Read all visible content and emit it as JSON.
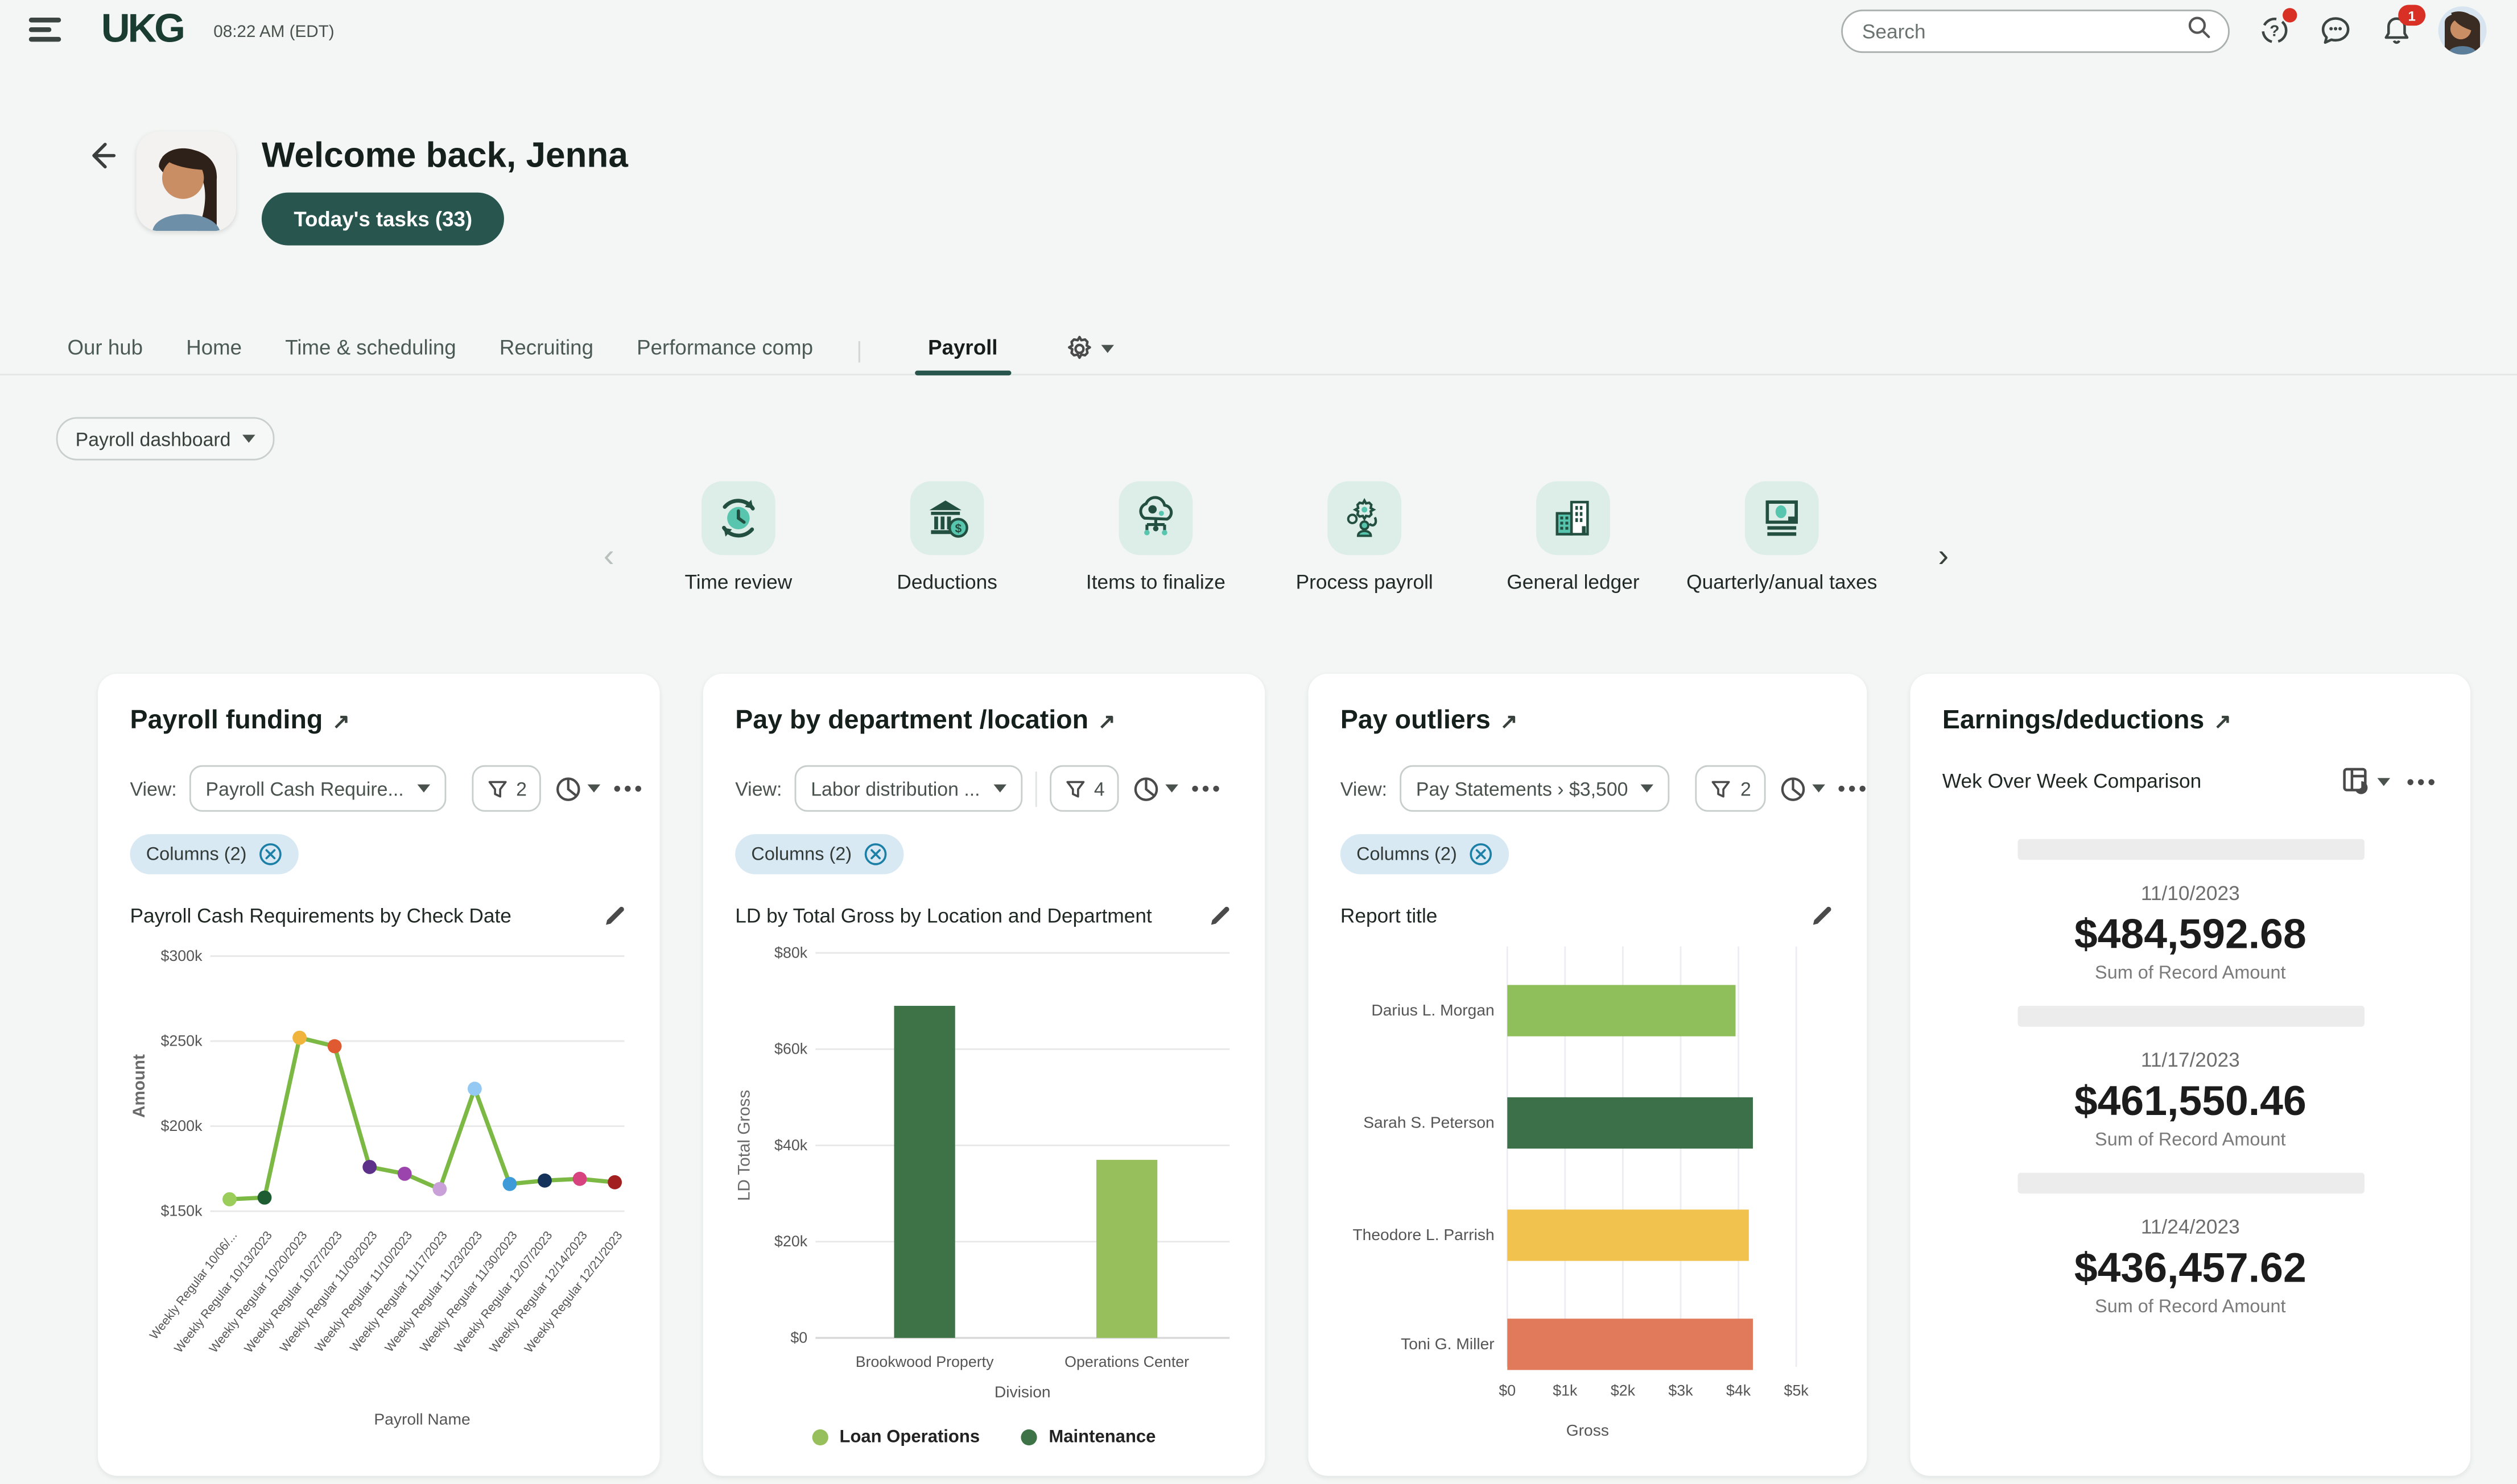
{
  "topbar": {
    "time": "08:22 AM (EDT)",
    "search_placeholder": "Search",
    "bell_badge": "1"
  },
  "welcome": {
    "title": "Welcome back, Jenna",
    "tasks_button": "Today's tasks (33)"
  },
  "tabs": {
    "items": [
      {
        "label": "Our hub"
      },
      {
        "label": "Home"
      },
      {
        "label": "Time & scheduling"
      },
      {
        "label": "Recruiting"
      },
      {
        "label": "Performance comp"
      },
      {
        "label": "Payroll",
        "active": true
      }
    ]
  },
  "dashboard_selector": "Payroll dashboard",
  "carousel": {
    "items": [
      {
        "label": "Time review"
      },
      {
        "label": "Deductions"
      },
      {
        "label": "Items to finalize"
      },
      {
        "label": "Process payroll"
      },
      {
        "label": "General ledger"
      },
      {
        "label": "Quarterly/anual taxes"
      }
    ]
  },
  "common": {
    "view_label": "View:",
    "columns_chip": "Columns (2)"
  },
  "cards": {
    "payroll_funding": {
      "title": "Payroll  funding",
      "view_value": "Payroll Cash Require...",
      "filter_count": "2",
      "report_title": "Payroll Cash Requirements by Check Date"
    },
    "pay_by_department": {
      "title": "Pay by department /location",
      "view_value": "Labor distribution ...",
      "filter_count": "4",
      "report_title": "LD by Total Gross by Location and Department"
    },
    "pay_outliers": {
      "title": "Pay outliers",
      "view_value": "Pay Statements › $3,500",
      "filter_count": "2",
      "report_title": "Report title"
    },
    "earnings": {
      "title": "Earnings/deductions",
      "subtitle": "Wek Over Week Comparison",
      "stats": [
        {
          "date": "11/10/2023",
          "amount": "$484,592.68",
          "label": "Sum of Record Amount"
        },
        {
          "date": "11/17/2023",
          "amount": "$461,550.46",
          "label": "Sum of Record Amount"
        },
        {
          "date": "11/24/2023",
          "amount": "$436,457.62",
          "label": "Sum of Record Amount"
        }
      ]
    }
  },
  "chart_data": [
    {
      "type": "line",
      "title": "Payroll Cash Requirements by Check Date",
      "xlabel": "Payroll Name",
      "ylabel": "Amount",
      "ylim": [
        150000,
        300000
      ],
      "yticks": [
        "$300k",
        "$250k",
        "$200k",
        "$150k"
      ],
      "categories": [
        "Weekly Regular 10/06/...",
        "Weekly Regular 10/13/2023",
        "Weekly Regular 10/20/2023",
        "Weekly Regular 10/27/2023",
        "Weekly Regular 11/03/2023",
        "Weekly Regular 11/10/2023",
        "Weekly Regular 11/17/2023",
        "Weekly Regular 11/23/2023",
        "Weekly Regular 11/30/2023",
        "Weekly Regular 12/07/2023",
        "Weekly Regular 12/14/2023",
        "Weekly Regular 12/21/2023"
      ],
      "values": [
        157000,
        158000,
        252000,
        247000,
        176000,
        172000,
        163000,
        222000,
        166000,
        168000,
        169000,
        167000
      ],
      "line_color": "#7cb844",
      "point_colors": [
        "#9acd5a",
        "#1e5c31",
        "#f0b43c",
        "#e05a31",
        "#5d3189",
        "#9c44ad",
        "#c9a0d8",
        "#93c9f2",
        "#3f9bd8",
        "#14325a",
        "#d6437e",
        "#a32020"
      ],
      "grid": true
    },
    {
      "type": "bar",
      "title": "LD by Total Gross by Location and Department",
      "xlabel": "Division",
      "ylabel": "LD Total Gross",
      "ylim": [
        0,
        80000
      ],
      "yticks": [
        "$80k",
        "$60k",
        "$40k",
        "$20k",
        "$0"
      ],
      "categories": [
        "Brookwood Property",
        "Operations Center"
      ],
      "values": [
        69000,
        37000
      ],
      "colors": [
        "#3e7347",
        "#97c05c"
      ],
      "legend": [
        {
          "label": "Loan Operations",
          "color": "#97c05c"
        },
        {
          "label": "Maintenance",
          "color": "#3e7347"
        }
      ],
      "legend_position": "bottom",
      "grid": true
    },
    {
      "type": "hbar",
      "title": "Report title",
      "xlabel": "Gross",
      "xlim": [
        0,
        5000
      ],
      "xticks": [
        "$0",
        "$1k",
        "$2k",
        "$3k",
        "$4k",
        "$5k"
      ],
      "categories": [
        "Darius L. Morgan",
        "Sarah S. Peterson",
        "Theodore L. Parrish",
        "Toni G. Miller"
      ],
      "values": [
        3950,
        4250,
        4180,
        4250
      ],
      "colors": [
        "#8fbf5a",
        "#3b7049",
        "#f2c24e",
        "#e1795b"
      ],
      "grid": true
    }
  ],
  "colors": {
    "brand_green": "#1b3c31",
    "accent_teal": "#28554e",
    "tile_mint": "#ddeee9",
    "icon_dark": "#234f41",
    "icon_accent": "#58c6ae",
    "chip_blue": "#d8e9f4",
    "badge_red": "#d93025"
  }
}
